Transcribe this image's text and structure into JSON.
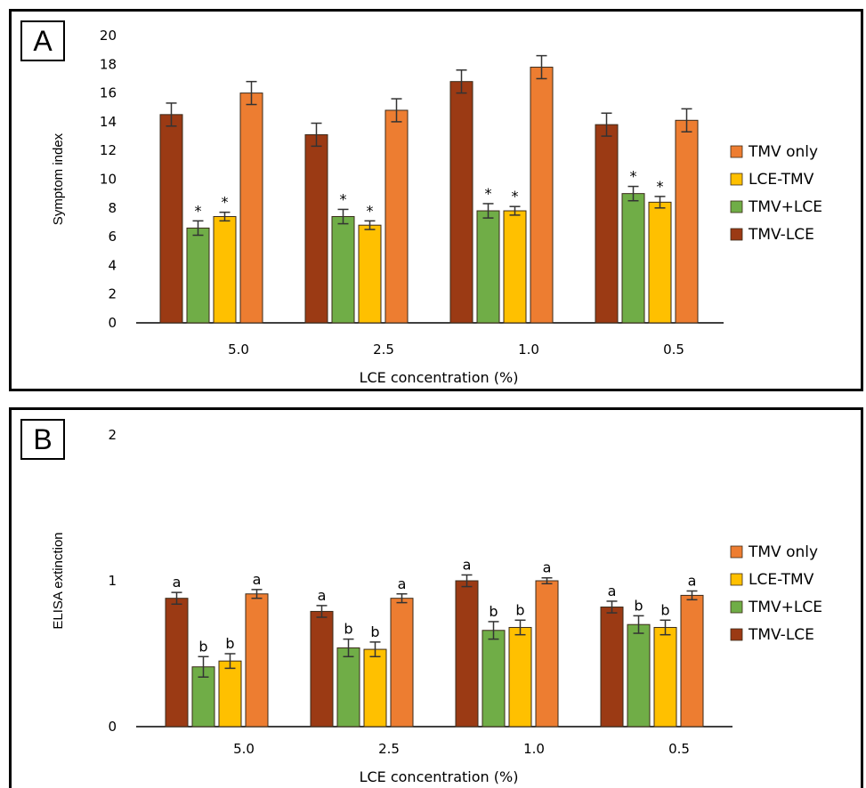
{
  "colors": {
    "TMV-LCE": "#9b3a14",
    "TMV+LCE": "#70ad47",
    "LCE-TMV": "#ffc000",
    "TMV only": "#ed7d31"
  },
  "panels": {
    "a_label": "A",
    "b_label": "B"
  },
  "chart_data": [
    {
      "type": "bar",
      "panel": "A",
      "categories": [
        "5.0",
        "2.5",
        "1.0",
        "0.5"
      ],
      "xlabel": "LCE concentration (%)",
      "ylabel": "Symptom index",
      "ylim": [
        0,
        20
      ],
      "yticks": [
        "0",
        "2",
        "4",
        "6",
        "8",
        "10",
        "12",
        "14",
        "16",
        "18",
        "20"
      ],
      "legend": [
        "TMV only",
        "LCE-TMV",
        "TMV+LCE",
        "TMV-LCE"
      ],
      "legend_position": "right",
      "series": [
        {
          "name": "TMV-LCE",
          "values": [
            14.5,
            13.1,
            16.8,
            13.8
          ],
          "errors": [
            0.8,
            0.8,
            0.8,
            0.8
          ],
          "marks": [
            "",
            "",
            "",
            ""
          ]
        },
        {
          "name": "TMV+LCE",
          "values": [
            6.6,
            7.4,
            7.8,
            9.0
          ],
          "errors": [
            0.5,
            0.5,
            0.5,
            0.5
          ],
          "marks": [
            "*",
            "*",
            "*",
            "*"
          ]
        },
        {
          "name": "LCE-TMV",
          "values": [
            7.4,
            6.8,
            7.8,
            8.4
          ],
          "errors": [
            0.3,
            0.3,
            0.3,
            0.4
          ],
          "marks": [
            "*",
            "*",
            "*",
            "*"
          ]
        },
        {
          "name": "TMV only",
          "values": [
            16.0,
            14.8,
            17.8,
            14.1
          ],
          "errors": [
            0.8,
            0.8,
            0.8,
            0.8
          ],
          "marks": [
            "",
            "",
            "",
            ""
          ]
        }
      ]
    },
    {
      "type": "bar",
      "panel": "B",
      "categories": [
        "5.0",
        "2.5",
        "1.0",
        "0.5"
      ],
      "xlabel": "LCE concentration (%)",
      "ylabel": "ELISA extinction",
      "ylim": [
        0,
        2
      ],
      "yticks": [
        "0",
        "1",
        "2"
      ],
      "legend": [
        "TMV only",
        "LCE-TMV",
        "TMV+LCE",
        "TMV-LCE"
      ],
      "legend_position": "right",
      "series": [
        {
          "name": "TMV-LCE",
          "values": [
            0.88,
            0.79,
            1.0,
            0.82
          ],
          "errors": [
            0.04,
            0.04,
            0.04,
            0.04
          ],
          "marks": [
            "a",
            "a",
            "a",
            "a"
          ]
        },
        {
          "name": "TMV+LCE",
          "values": [
            0.41,
            0.54,
            0.66,
            0.7
          ],
          "errors": [
            0.07,
            0.06,
            0.06,
            0.06
          ],
          "marks": [
            "b",
            "b",
            "b",
            "b"
          ]
        },
        {
          "name": "LCE-TMV",
          "values": [
            0.45,
            0.53,
            0.68,
            0.68
          ],
          "errors": [
            0.05,
            0.05,
            0.05,
            0.05
          ],
          "marks": [
            "b",
            "b",
            "b",
            "b"
          ]
        },
        {
          "name": "TMV only",
          "values": [
            0.91,
            0.88,
            1.0,
            0.9
          ],
          "errors": [
            0.03,
            0.03,
            0.02,
            0.03
          ],
          "marks": [
            "a",
            "a",
            "a",
            "a"
          ]
        }
      ]
    }
  ]
}
